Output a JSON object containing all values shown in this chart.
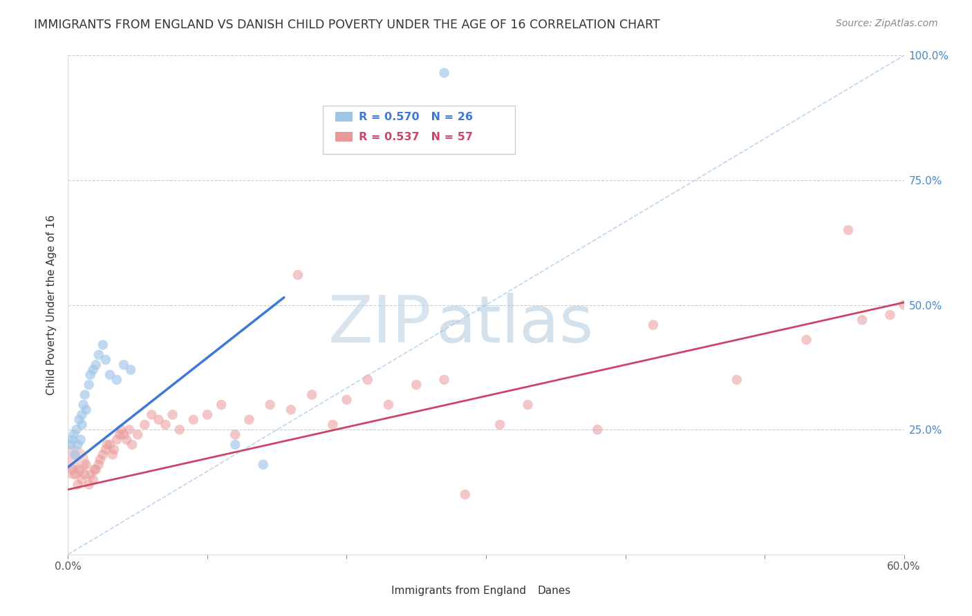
{
  "title": "IMMIGRANTS FROM ENGLAND VS DANISH CHILD POVERTY UNDER THE AGE OF 16 CORRELATION CHART",
  "source": "Source: ZipAtlas.com",
  "ylabel": "Child Poverty Under the Age of 16",
  "xlim": [
    0.0,
    0.6
  ],
  "ylim": [
    0.0,
    1.0
  ],
  "xticks": [
    0.0,
    0.1,
    0.2,
    0.3,
    0.4,
    0.5,
    0.6
  ],
  "xtick_labels": [
    "0.0%",
    "",
    "",
    "",
    "",
    "",
    "60.0%"
  ],
  "yticks": [
    0.0,
    0.25,
    0.5,
    0.75,
    1.0
  ],
  "ytick_labels_right": [
    "",
    "25.0%",
    "50.0%",
    "75.0%",
    "100.0%"
  ],
  "blue_R": 0.57,
  "blue_N": 26,
  "pink_R": 0.537,
  "pink_N": 57,
  "blue_color": "#9fc5e8",
  "pink_color": "#ea9999",
  "blue_line_color": "#3c78d8",
  "pink_line_color": "#cc4466",
  "legend_label_blue": "Immigrants from England",
  "legend_label_pink": "Danes",
  "watermark_zip": "ZIP",
  "watermark_atlas": "atlas",
  "blue_line_x": [
    0.0,
    0.155
  ],
  "blue_line_y": [
    0.175,
    0.515
  ],
  "pink_line_x": [
    0.0,
    0.6
  ],
  "pink_line_y": [
    0.13,
    0.505
  ],
  "ref_line_x": [
    0.0,
    0.6
  ],
  "ref_line_y": [
    0.0,
    1.0
  ],
  "blue_scatter_x": [
    0.002,
    0.003,
    0.004,
    0.005,
    0.006,
    0.007,
    0.008,
    0.009,
    0.01,
    0.01,
    0.011,
    0.012,
    0.013,
    0.015,
    0.016,
    0.018,
    0.02,
    0.022,
    0.025,
    0.027,
    0.03,
    0.035,
    0.04,
    0.045,
    0.12,
    0.14
  ],
  "blue_scatter_y": [
    0.22,
    0.23,
    0.24,
    0.2,
    0.25,
    0.22,
    0.27,
    0.23,
    0.26,
    0.28,
    0.3,
    0.32,
    0.29,
    0.34,
    0.36,
    0.37,
    0.38,
    0.4,
    0.42,
    0.39,
    0.36,
    0.35,
    0.38,
    0.37,
    0.22,
    0.18
  ],
  "blue_large_x": [
    0.003
  ],
  "blue_large_y": [
    0.225
  ],
  "blue_outlier_x": [
    0.27
  ],
  "blue_outlier_y": [
    0.965
  ],
  "pink_scatter_x": [
    0.003,
    0.005,
    0.007,
    0.008,
    0.01,
    0.012,
    0.013,
    0.015,
    0.016,
    0.018,
    0.019,
    0.02,
    0.022,
    0.023,
    0.025,
    0.027,
    0.028,
    0.03,
    0.032,
    0.033,
    0.035,
    0.037,
    0.038,
    0.04,
    0.042,
    0.044,
    0.046,
    0.05,
    0.055,
    0.06,
    0.065,
    0.07,
    0.075,
    0.08,
    0.09,
    0.1,
    0.11,
    0.12,
    0.13,
    0.145,
    0.16,
    0.175,
    0.19,
    0.2,
    0.215,
    0.23,
    0.25,
    0.27,
    0.31,
    0.33,
    0.38,
    0.42,
    0.48,
    0.53,
    0.57,
    0.59,
    0.6
  ],
  "pink_scatter_y": [
    0.17,
    0.16,
    0.14,
    0.17,
    0.15,
    0.16,
    0.18,
    0.14,
    0.16,
    0.15,
    0.17,
    0.17,
    0.18,
    0.19,
    0.2,
    0.21,
    0.22,
    0.22,
    0.2,
    0.21,
    0.23,
    0.24,
    0.25,
    0.24,
    0.23,
    0.25,
    0.22,
    0.24,
    0.26,
    0.28,
    0.27,
    0.26,
    0.28,
    0.25,
    0.27,
    0.28,
    0.3,
    0.24,
    0.27,
    0.3,
    0.29,
    0.32,
    0.26,
    0.31,
    0.35,
    0.3,
    0.34,
    0.35,
    0.26,
    0.3,
    0.25,
    0.46,
    0.35,
    0.43,
    0.47,
    0.48,
    0.5
  ],
  "pink_large_x": [
    0.003
  ],
  "pink_large_y": [
    0.185
  ],
  "pink_outlier1_x": [
    0.165
  ],
  "pink_outlier1_y": [
    0.56
  ],
  "pink_outlier2_x": [
    0.56
  ],
  "pink_outlier2_y": [
    0.65
  ],
  "pink_outlier3_x": [
    0.285
  ],
  "pink_outlier3_y": [
    0.12
  ]
}
